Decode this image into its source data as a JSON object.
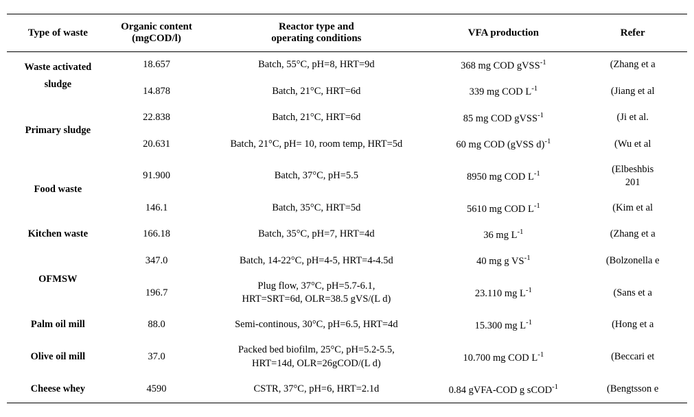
{
  "headers": {
    "c1": "Type of waste",
    "c2_l1": "Organic content",
    "c2_l2": "(mgCOD/l)",
    "c3_l1": "Reactor type and",
    "c3_l2": "operating conditions",
    "c4": "VFA production",
    "c5": "Refer"
  },
  "waste_types": {
    "was_l1": "Waste activated",
    "was_l2": "sludge",
    "primary": "Primary sludge",
    "food": "Food waste",
    "kitchen": "Kitchen waste",
    "ofmsw": "OFMSW",
    "palm": "Palm oil mill",
    "olive": "Olive oil mill",
    "cheese": "Cheese whey"
  },
  "rows": [
    {
      "oc": "18.657",
      "rt": "Batch, 55°C, pH=8, HRT=9d",
      "vfa_pre": "368 mg COD gVSS",
      "vfa_sup": "-1",
      "ref": "(Zhang et a"
    },
    {
      "oc": "14.878",
      "rt": "Batch, 21°C, HRT=6d",
      "vfa_pre": "339 mg COD L",
      "vfa_sup": "-1",
      "ref": "(Jiang et al"
    },
    {
      "oc": "22.838",
      "rt": "Batch, 21°C, HRT=6d",
      "vfa_pre": "85 mg COD gVSS",
      "vfa_sup": "-1",
      "ref": "(Ji et al."
    },
    {
      "oc": "20.631",
      "rt": "Batch, 21°C, pH= 10, room temp, HRT=5d",
      "vfa_pre": "60 mg COD (gVSS d)",
      "vfa_sup": "-1",
      "ref": "(Wu et al"
    },
    {
      "oc": "91.900",
      "rt": "Batch, 37°C, pH=5.5",
      "vfa_pre": "8950 mg COD L",
      "vfa_sup": "-1",
      "ref_l1": "(Elbeshbis",
      "ref_l2": "201"
    },
    {
      "oc": "146.1",
      "rt": "Batch, 35°C, HRT=5d",
      "vfa_pre": "5610 mg COD L",
      "vfa_sup": "-1",
      "ref": "(Kim et al"
    },
    {
      "oc": "166.18",
      "rt": "Batch, 35°C, pH=7, HRT=4d",
      "vfa_pre": "36 mg L",
      "vfa_sup": "-1",
      "ref": "(Zhang et a"
    },
    {
      "oc": "347.0",
      "rt": "Batch, 14-22°C, pH=4-5, HRT=4-4.5d",
      "vfa_pre": "40 mg g VS",
      "vfa_sup": "-1",
      "ref": "(Bolzonella e"
    },
    {
      "oc": "196.7",
      "rt_l1": "Plug flow, 37°C, pH=5.7-6.1,",
      "rt_l2": "HRT=SRT=6d, OLR=38.5 gVS/(L d)",
      "vfa_pre": "23.110 mg L",
      "vfa_sup": "-1",
      "ref": "(Sans et a"
    },
    {
      "oc": "88.0",
      "rt": "Semi-continous, 30°C, pH=6.5, HRT=4d",
      "vfa_pre": "15.300 mg L",
      "vfa_sup": "-1",
      "ref": "(Hong et a"
    },
    {
      "oc": "37.0",
      "rt_l1": "Packed bed biofilm, 25°C, pH=5.2-5.5,",
      "rt_l2": "HRT=14d, OLR=26gCOD/(L d)",
      "vfa_pre": "10.700 mg COD L",
      "vfa_sup": "-1",
      "ref": "(Beccari et"
    },
    {
      "oc": "4590",
      "rt": "CSTR, 37°C, pH=6, HRT=2.1d",
      "vfa_pre": "0.84 gVFA-COD g sCOD",
      "vfa_sup": "-1",
      "ref": "(Bengtsson e"
    }
  ]
}
